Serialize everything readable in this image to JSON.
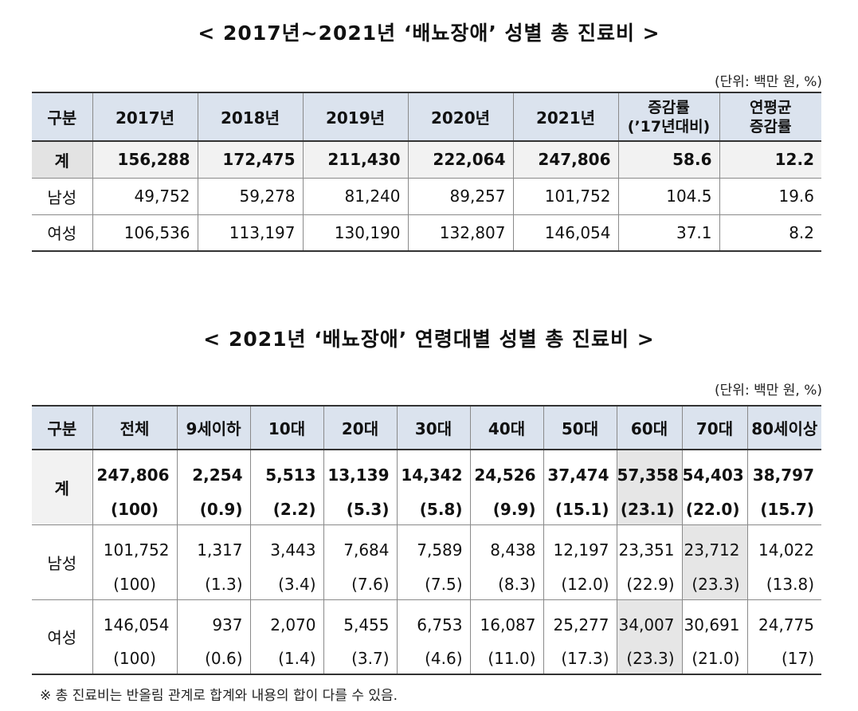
{
  "title1": "< 2017년~2021년 ‘배뇨장애’ 성별 총 진료비 >",
  "unit1": "(단위: 백만 원, %)",
  "table1": {
    "headers": [
      "구분",
      "2017년",
      "2018년",
      "2019년",
      "2020년",
      "2021년",
      "증감률",
      "(’17년대비)",
      "연평균",
      "증감률"
    ],
    "rows": [
      [
        "계",
        "156,288",
        "172,475",
        "211,430",
        "222,064",
        "247,806",
        "58.6",
        "12.2"
      ],
      [
        "남성",
        "49,752",
        "59,278",
        "81,240",
        "89,257",
        "101,752",
        "104.5",
        "19.6"
      ],
      [
        "여성",
        "106,536",
        "113,197",
        "130,190",
        "132,807",
        "146,054",
        "37.1",
        "8.2"
      ]
    ]
  },
  "title2": "< 2021년 ‘배뇨장애’ 연령대별 성별 총 진료비 >",
  "unit2": "(단위: 백만 원, %)",
  "table2": {
    "headers": [
      "구분",
      "전체",
      "9세이하",
      "10대",
      "20대",
      "30대",
      "40대",
      "50대",
      "60대",
      "70대",
      "80세이상"
    ],
    "groups": [
      {
        "label": "계",
        "values": [
          "247,806",
          "2,254",
          "5,513",
          "13,139",
          "14,342",
          "24,526",
          "37,474",
          "57,358",
          "54,403",
          "38,797"
        ],
        "shares": [
          "(100)",
          "(0.9)",
          "(2.2)",
          "(5.3)",
          "(5.8)",
          "(9.9)",
          "(15.1)",
          "(23.1)",
          "(22.0)",
          "(15.7)"
        ]
      },
      {
        "label": "남성",
        "values": [
          "101,752",
          "1,317",
          "3,443",
          "7,684",
          "7,589",
          "8,438",
          "12,197",
          "23,351",
          "23,712",
          "14,022"
        ],
        "shares": [
          "(100)",
          "(1.3)",
          "(3.4)",
          "(7.6)",
          "(7.5)",
          "(8.3)",
          "(12.0)",
          "(22.9)",
          "(23.3)",
          "(13.8)"
        ]
      },
      {
        "label": "여성",
        "values": [
          "146,054",
          "937",
          "2,070",
          "5,455",
          "6,753",
          "16,087",
          "25,277",
          "34,007",
          "30,691",
          "24,775"
        ],
        "shares": [
          "(100)",
          "(0.6)",
          "(1.4)",
          "(3.7)",
          "(4.6)",
          "(11.0)",
          "(17.3)",
          "(23.3)",
          "(21.0)",
          "(17)"
        ]
      }
    ]
  },
  "note": "※ 총 진료비는 반올림 관계로 합계와 내용의 합이 다를 수 있음.",
  "colors": {
    "header_bg": "#dbe3ee",
    "highlight_bg": "#e6e6e6",
    "total_bg": "#f2f2f2"
  }
}
